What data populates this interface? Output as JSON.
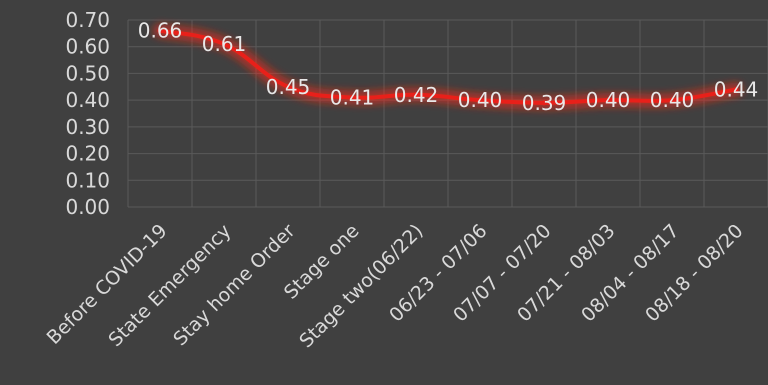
{
  "chart_data": {
    "type": "line",
    "title": "",
    "xlabel": "",
    "ylabel": "",
    "categories": [
      "Before COVID-19",
      "State Emergency",
      "Stay home Order",
      "Stage one",
      "Stage two(06/22)",
      "06/23 - 07/06",
      "07/07 - 07/20",
      "07/21 - 08/03",
      "08/04 - 08/17",
      "08/18 - 08/20"
    ],
    "series": [
      {
        "values": [
          0.66,
          0.61,
          0.45,
          0.41,
          0.42,
          0.4,
          0.39,
          0.4,
          0.4,
          0.44
        ]
      }
    ],
    "data_labels": [
      "0.66",
      "0.61",
      "0.45",
      "0.41",
      "0.42",
      "0.40",
      "0.39",
      "0.40",
      "0.40",
      "0.44"
    ],
    "y_ticks": [
      "0.00",
      "0.10",
      "0.20",
      "0.30",
      "0.40",
      "0.50",
      "0.60",
      "0.70"
    ],
    "ylim": [
      0,
      0.7
    ],
    "grid": true,
    "legend": "none",
    "colors": {
      "background": "#404040",
      "line": "#e8201a",
      "glow": "#ff2a1a",
      "grid": "#5a5a5a",
      "text": "#d9d9d9"
    }
  }
}
